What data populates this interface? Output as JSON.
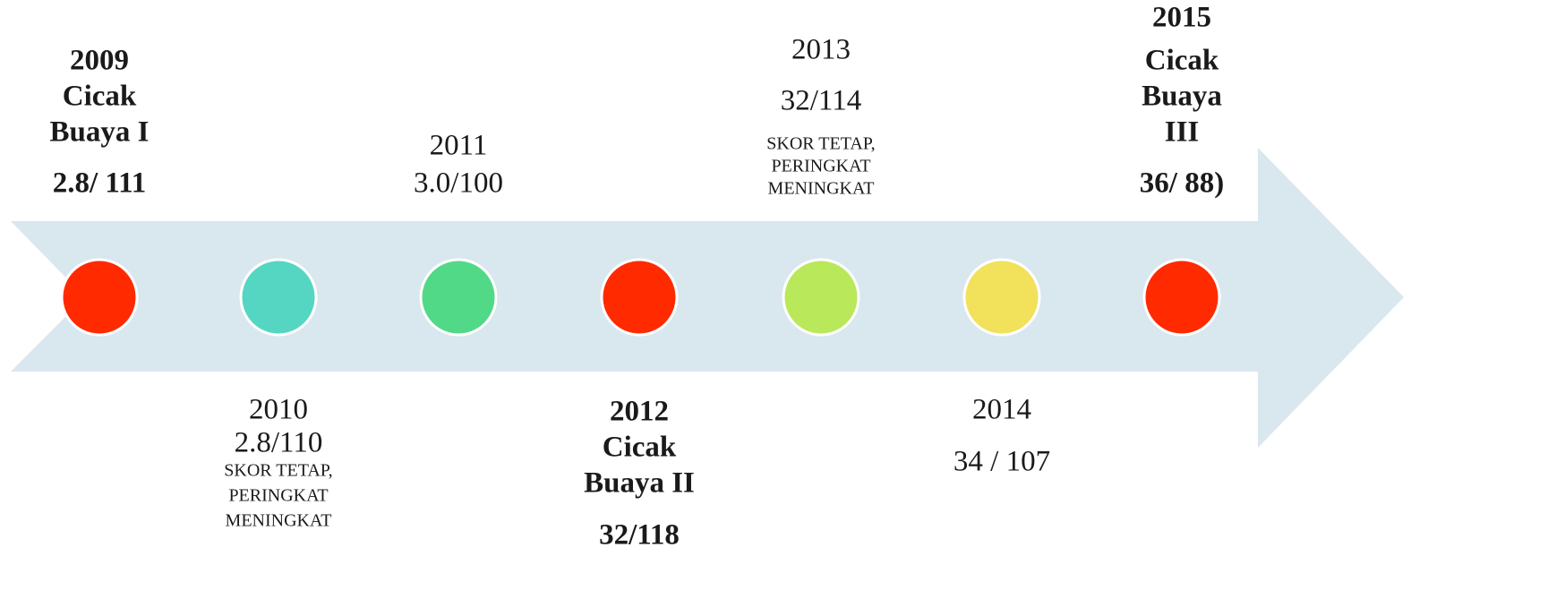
{
  "events": [
    {
      "lines": [
        "2009",
        "Cicak",
        "Buaya I"
      ],
      "score": "2.8/ 111",
      "note": [],
      "color": "#ff2a00"
    },
    {
      "lines": [
        "2010"
      ],
      "score": "2.8/110",
      "note": [
        "SKOR TETAP,",
        "PERINGKAT",
        "MENINGKAT"
      ],
      "color": "#55d6c2"
    },
    {
      "lines": [
        "2011"
      ],
      "score": "3.0/100",
      "note": [],
      "color": "#52d987"
    },
    {
      "lines": [
        "2012",
        "Cicak",
        "Buaya II"
      ],
      "score": "32/118",
      "note": [],
      "color": "#ff2a00"
    },
    {
      "lines": [
        "2013"
      ],
      "score": "32/114",
      "note": [
        "SKOR TETAP,",
        "PERINGKAT",
        "MENINGKAT"
      ],
      "color": "#b9e85a"
    },
    {
      "lines": [
        "2014"
      ],
      "score": "34 / 107",
      "note": [],
      "color": "#f2e15a"
    },
    {
      "lines": [
        "2015",
        "Cicak",
        "Buaya",
        "III"
      ],
      "score": "36/ 88)",
      "note": [],
      "color": "#ff2a00"
    }
  ]
}
